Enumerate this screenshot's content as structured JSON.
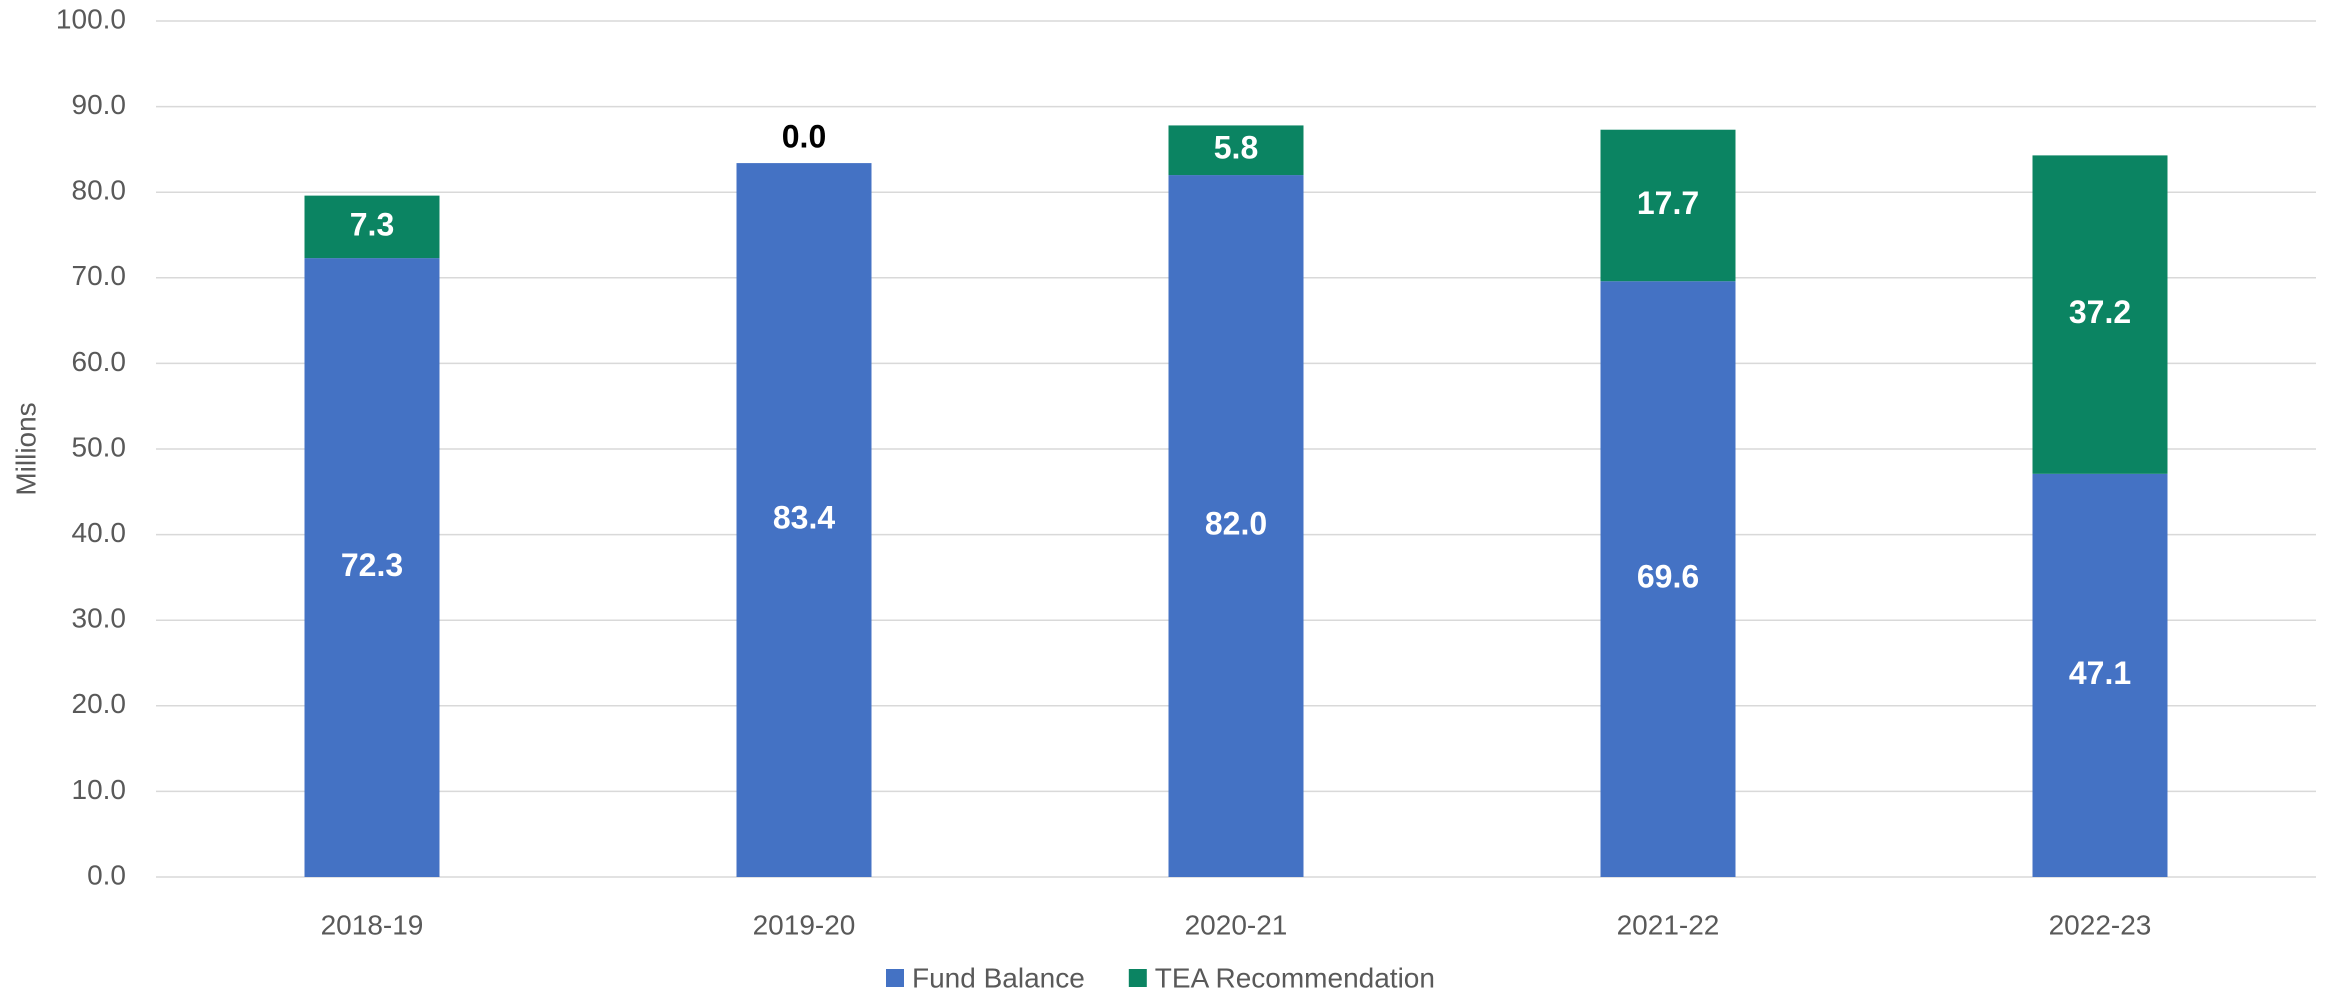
{
  "chart_data": {
    "type": "stacked_bar",
    "y_label": "Millions",
    "categories": [
      "2018-19",
      "2019-20",
      "2020-21",
      "2021-22",
      "2022-23"
    ],
    "series": [
      {
        "name": "Fund Balance",
        "color": "#4472c4",
        "values": [
          72.3,
          83.4,
          82.0,
          69.6,
          47.1
        ],
        "value_labels": [
          "72.3",
          "83.4",
          "82.0",
          "69.6",
          "47.1"
        ]
      },
      {
        "name": "TEA Recommendation",
        "color": "#0b8462",
        "values": [
          7.3,
          0.0,
          5.8,
          17.7,
          37.2
        ],
        "value_labels": [
          "7.3",
          "0.0",
          "5.8",
          "17.7",
          "37.2"
        ]
      }
    ],
    "ylim": [
      0,
      100
    ],
    "yticks": [
      {
        "value": 0,
        "label": "0.0"
      },
      {
        "value": 10,
        "label": "10.0"
      },
      {
        "value": 20,
        "label": "20.0"
      },
      {
        "value": 30,
        "label": "30.0"
      },
      {
        "value": 40,
        "label": "40.0"
      },
      {
        "value": 50,
        "label": "50.0"
      },
      {
        "value": 60,
        "label": "60.0"
      },
      {
        "value": 70,
        "label": "70.0"
      },
      {
        "value": 80,
        "label": "80.0"
      },
      {
        "value": 90,
        "label": "90.0"
      },
      {
        "value": 100,
        "label": "100.0"
      }
    ],
    "grid": true,
    "legend": "bottom"
  }
}
